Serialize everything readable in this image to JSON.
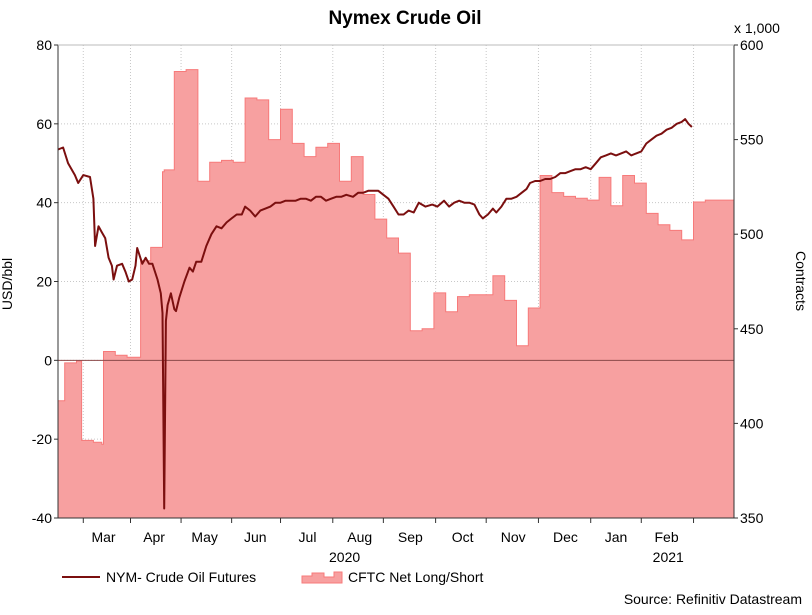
{
  "chart_data": {
    "type": "line+area",
    "title": "Nymex Crude Oil",
    "ylabel_left": "USD/bbl",
    "ylabel_right": "Contracts",
    "right_axis_multiplier": "x 1,000",
    "source": "Source: Refinitiv Datastream",
    "ylim_left": [
      -40,
      80
    ],
    "yticks_left": [
      "-40",
      "-20",
      "0",
      "20",
      "40",
      "60",
      "80"
    ],
    "ylim_right": [
      350,
      600
    ],
    "yticks_right": [
      "350",
      "400",
      "450",
      "500",
      "550",
      "600"
    ],
    "xlim_days": [
      0,
      401
    ],
    "months": [
      {
        "label": "Mar",
        "day": 27
      },
      {
        "label": "Apr",
        "day": 57
      },
      {
        "label": "May",
        "day": 87
      },
      {
        "label": "Jun",
        "day": 117
      },
      {
        "label": "Jul",
        "day": 148
      },
      {
        "label": "Aug",
        "day": 179
      },
      {
        "label": "Sep",
        "day": 209
      },
      {
        "label": "Oct",
        "day": 240
      },
      {
        "label": "Nov",
        "day": 270
      },
      {
        "label": "Dec",
        "day": 301
      },
      {
        "label": "Jan",
        "day": 331
      },
      {
        "label": "Feb",
        "day": 361
      }
    ],
    "month_boundaries": [
      15,
      43,
      73,
      103,
      132,
      163,
      193,
      224,
      254,
      285,
      316,
      346,
      377
    ],
    "years": [
      {
        "label": "2020",
        "day": 170
      },
      {
        "label": "2021",
        "day": 362
      }
    ],
    "grid": true,
    "legend_position": "bottom-left",
    "series": [
      {
        "name": "NYM- Crude Oil Futures",
        "axis": "left",
        "color": "#7b0f0f",
        "points": [
          [
            0,
            53.5
          ],
          [
            3,
            54
          ],
          [
            6,
            50
          ],
          [
            10,
            47
          ],
          [
            12,
            45
          ],
          [
            15,
            47
          ],
          [
            19,
            46.5
          ],
          [
            21,
            41
          ],
          [
            22,
            29
          ],
          [
            24,
            34
          ],
          [
            26,
            32.5
          ],
          [
            28,
            31
          ],
          [
            30,
            26
          ],
          [
            32,
            24
          ],
          [
            33,
            20.5
          ],
          [
            35,
            24
          ],
          [
            38,
            24.5
          ],
          [
            40,
            22.5
          ],
          [
            42,
            20
          ],
          [
            44,
            20.5
          ],
          [
            46,
            24
          ],
          [
            47,
            28.5
          ],
          [
            50,
            24.5
          ],
          [
            52,
            26
          ],
          [
            54,
            24.5
          ],
          [
            56,
            24.5
          ],
          [
            59,
            20.5
          ],
          [
            61,
            17
          ],
          [
            62,
            12
          ],
          [
            63,
            -37.6
          ],
          [
            64,
            10
          ],
          [
            65,
            14
          ],
          [
            67,
            17
          ],
          [
            69,
            13
          ],
          [
            70,
            12.5
          ],
          [
            72,
            16
          ],
          [
            75,
            20
          ],
          [
            78,
            23.5
          ],
          [
            80,
            22.5
          ],
          [
            82,
            25
          ],
          [
            85,
            25
          ],
          [
            88,
            29
          ],
          [
            91,
            32
          ],
          [
            94,
            34
          ],
          [
            97,
            33.5
          ],
          [
            100,
            35
          ],
          [
            103,
            36
          ],
          [
            106,
            37
          ],
          [
            109,
            37
          ],
          [
            111,
            39
          ],
          [
            114,
            38
          ],
          [
            117,
            36.5
          ],
          [
            120,
            38
          ],
          [
            123,
            38.5
          ],
          [
            126,
            39
          ],
          [
            129,
            40
          ],
          [
            132,
            40
          ],
          [
            135,
            40.5
          ],
          [
            138,
            40.5
          ],
          [
            141,
            40.5
          ],
          [
            144,
            41
          ],
          [
            147,
            41
          ],
          [
            150,
            40.5
          ],
          [
            153,
            41.5
          ],
          [
            156,
            41.5
          ],
          [
            159,
            40.5
          ],
          [
            162,
            41
          ],
          [
            165,
            41.5
          ],
          [
            168,
            41.5
          ],
          [
            171,
            42
          ],
          [
            175,
            41.5
          ],
          [
            178,
            42.5
          ],
          [
            181,
            42.5
          ],
          [
            184,
            43
          ],
          [
            187,
            43
          ],
          [
            190,
            43
          ],
          [
            193,
            42
          ],
          [
            196,
            41
          ],
          [
            199,
            39
          ],
          [
            202,
            37
          ],
          [
            205,
            37
          ],
          [
            208,
            38
          ],
          [
            211,
            37.5
          ],
          [
            214,
            40
          ],
          [
            218,
            39
          ],
          [
            222,
            39.5
          ],
          [
            225,
            39
          ],
          [
            229,
            40.5
          ],
          [
            232,
            39
          ],
          [
            235,
            40
          ],
          [
            238,
            40.5
          ],
          [
            241,
            40
          ],
          [
            244,
            40
          ],
          [
            247,
            39.5
          ],
          [
            250,
            37
          ],
          [
            252,
            36
          ],
          [
            255,
            37
          ],
          [
            258,
            38.5
          ],
          [
            260,
            37.5
          ],
          [
            263,
            39
          ],
          [
            266,
            41
          ],
          [
            269,
            41
          ],
          [
            272,
            41.5
          ],
          [
            275,
            42.5
          ],
          [
            278,
            43.5
          ],
          [
            280,
            45
          ],
          [
            283,
            45.5
          ],
          [
            286,
            45.5
          ],
          [
            289,
            46
          ],
          [
            292,
            46
          ],
          [
            295,
            46.5
          ],
          [
            298,
            47.5
          ],
          [
            301,
            47.5
          ],
          [
            304,
            48
          ],
          [
            307,
            48.5
          ],
          [
            310,
            48.5
          ],
          [
            313,
            49
          ],
          [
            316,
            48.5
          ],
          [
            319,
            50
          ],
          [
            322,
            51.5
          ],
          [
            325,
            52
          ],
          [
            328,
            52.5
          ],
          [
            331,
            52
          ],
          [
            334,
            52.5
          ],
          [
            337,
            53
          ],
          [
            340,
            52
          ],
          [
            343,
            52.5
          ],
          [
            346,
            53
          ],
          [
            349,
            55
          ],
          [
            352,
            56
          ],
          [
            355,
            57
          ],
          [
            358,
            57.5
          ],
          [
            361,
            58.5
          ],
          [
            364,
            59
          ],
          [
            367,
            60
          ],
          [
            370,
            60.5
          ],
          [
            372,
            61.2
          ],
          [
            374,
            60
          ],
          [
            376,
            59.2
          ]
        ]
      },
      {
        "name": "CFTC Net Long/Short",
        "axis": "right",
        "color": "#f77a7a",
        "steps": [
          [
            0,
            412
          ],
          [
            4,
            432
          ],
          [
            10,
            432
          ],
          [
            11,
            433
          ],
          [
            14,
            391
          ],
          [
            21,
            390
          ],
          [
            26,
            389
          ],
          [
            27,
            438
          ],
          [
            34,
            436
          ],
          [
            41,
            435
          ],
          [
            48,
            435
          ],
          [
            49,
            486
          ],
          [
            55,
            493
          ],
          [
            62,
            533
          ],
          [
            63,
            534
          ],
          [
            69,
            586
          ],
          [
            76,
            587
          ],
          [
            83,
            528
          ],
          [
            90,
            538
          ],
          [
            97,
            539
          ],
          [
            104,
            538
          ],
          [
            111,
            572
          ],
          [
            118,
            571
          ],
          [
            125,
            550
          ],
          [
            132,
            566
          ],
          [
            139,
            548
          ],
          [
            146,
            541
          ],
          [
            153,
            546
          ],
          [
            160,
            548
          ],
          [
            167,
            528
          ],
          [
            174,
            541
          ],
          [
            181,
            521
          ],
          [
            188,
            508
          ],
          [
            195,
            498
          ],
          [
            202,
            490
          ],
          [
            209,
            449
          ],
          [
            216,
            450
          ],
          [
            223,
            469
          ],
          [
            230,
            459
          ],
          [
            237,
            467
          ],
          [
            244,
            468
          ],
          [
            251,
            468
          ],
          [
            258,
            478
          ],
          [
            265,
            465
          ],
          [
            272,
            441
          ],
          [
            279,
            461
          ],
          [
            286,
            531
          ],
          [
            293,
            522
          ],
          [
            300,
            520
          ],
          [
            307,
            519
          ],
          [
            314,
            518
          ],
          [
            321,
            530
          ],
          [
            328,
            515
          ],
          [
            335,
            531
          ],
          [
            342,
            527
          ],
          [
            349,
            511
          ],
          [
            356,
            505
          ],
          [
            363,
            502
          ],
          [
            370,
            497
          ],
          [
            377,
            517
          ],
          [
            384,
            518
          ],
          [
            391,
            518
          ],
          [
            401,
            518
          ]
        ]
      }
    ]
  },
  "legend": {
    "line_label": "NYM- Crude Oil Futures",
    "area_label": "CFTC Net Long/Short"
  }
}
